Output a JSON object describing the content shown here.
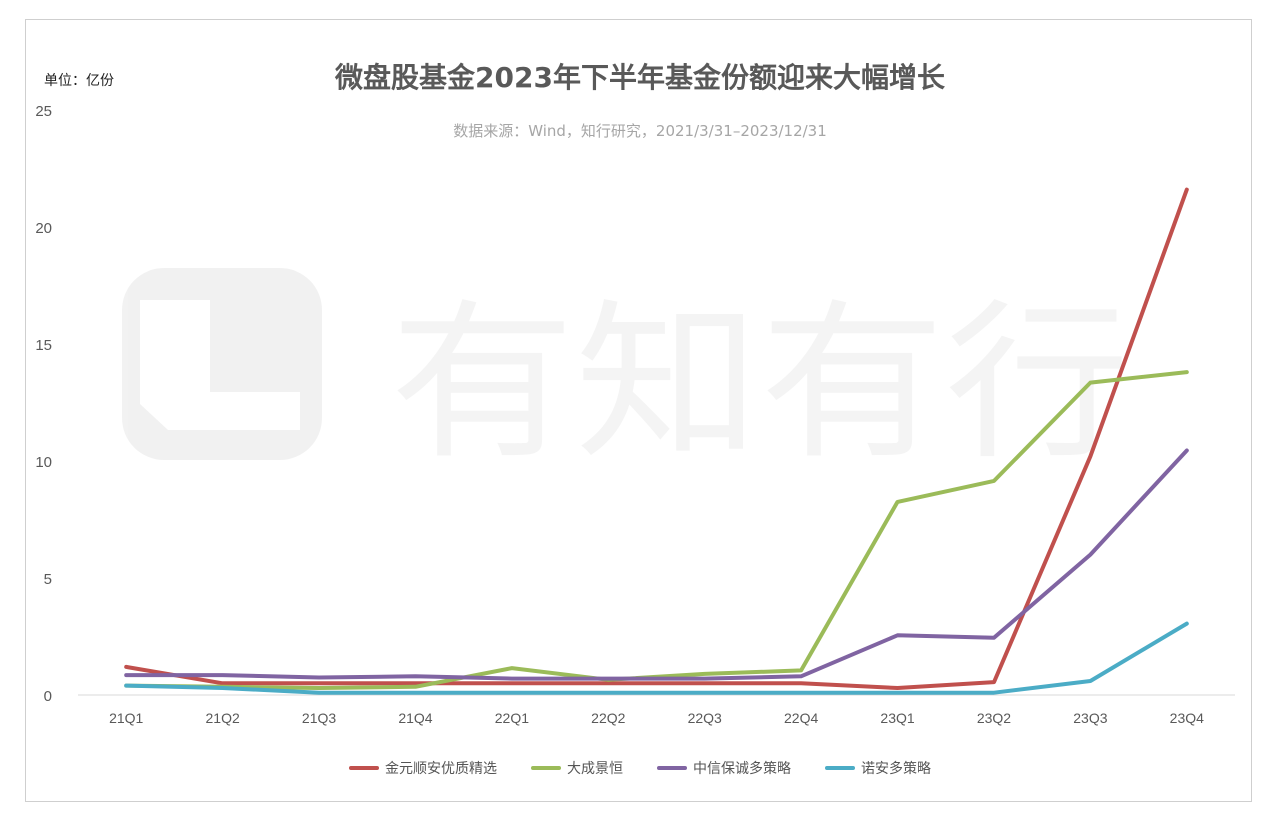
{
  "chart_data": {
    "type": "line",
    "title": "微盘股基金2023年下半年基金份额迎来大幅增长",
    "subtitle": "数据来源：Wind，知行研究，2021/3/31–2023/12/31",
    "unit_label": "单位：亿份",
    "watermark": "有知有行",
    "categories": [
      "21Q1",
      "21Q2",
      "21Q3",
      "21Q4",
      "22Q1",
      "22Q2",
      "22Q3",
      "22Q4",
      "23Q1",
      "23Q2",
      "23Q3",
      "23Q4"
    ],
    "ylim": [
      0,
      25
    ],
    "yticks": [
      0,
      5,
      10,
      15,
      20,
      25
    ],
    "grid": false,
    "legend_position": "bottom",
    "series": [
      {
        "name": "金元顺安优质精选",
        "color": "#c0504d",
        "values": [
          1.2,
          0.5,
          0.5,
          0.5,
          0.5,
          0.5,
          0.5,
          0.5,
          0.3,
          0.55,
          10.2,
          21.6
        ]
      },
      {
        "name": "大成景恒",
        "color": "#9bbb59",
        "values": [
          0.4,
          0.35,
          0.3,
          0.35,
          1.15,
          0.65,
          0.9,
          1.05,
          8.25,
          9.15,
          13.35,
          13.8
        ]
      },
      {
        "name": "中信保诚多策略",
        "color": "#8064a2",
        "values": [
          0.85,
          0.85,
          0.75,
          0.8,
          0.7,
          0.7,
          0.7,
          0.8,
          2.55,
          2.45,
          6.0,
          10.45
        ]
      },
      {
        "name": "诺安多策略",
        "color": "#4bacc6",
        "values": [
          0.4,
          0.3,
          0.1,
          0.1,
          0.1,
          0.1,
          0.1,
          0.1,
          0.1,
          0.1,
          0.6,
          3.05
        ]
      }
    ]
  }
}
